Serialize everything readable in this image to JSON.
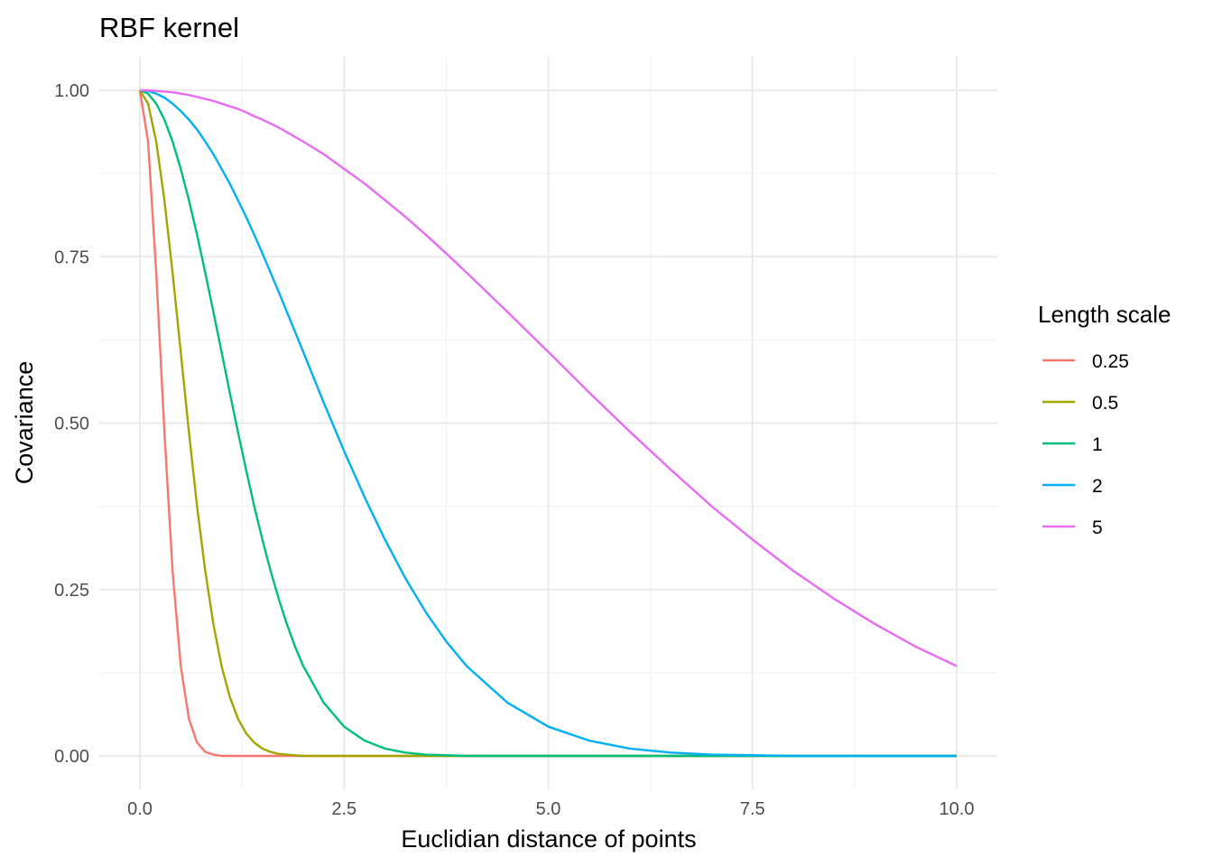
{
  "chart_data": {
    "type": "line",
    "title": "RBF kernel",
    "xlabel": "Euclidian distance of points",
    "ylabel": "Covariance",
    "xlim": [
      0,
      10
    ],
    "ylim": [
      0,
      1
    ],
    "x_ticks": [
      "0.0",
      "2.5",
      "5.0",
      "7.5",
      "10.0"
    ],
    "y_ticks": [
      "0.00",
      "0.25",
      "0.50",
      "0.75",
      "1.00"
    ],
    "x_tick_values": [
      0,
      2.5,
      5,
      7.5,
      10
    ],
    "y_tick_values": [
      0,
      0.25,
      0.5,
      0.75,
      1
    ],
    "grid": true,
    "legend": {
      "title": "Length scale",
      "position": "right"
    },
    "x": [
      0,
      0.1,
      0.2,
      0.3,
      0.4,
      0.5,
      0.6,
      0.7,
      0.8,
      0.9,
      1,
      1.1,
      1.2,
      1.3,
      1.4,
      1.5,
      1.6,
      1.7,
      1.8,
      1.9,
      2,
      2.25,
      2.5,
      2.75,
      3,
      3.25,
      3.5,
      3.75,
      4,
      4.5,
      5,
      5.5,
      6,
      6.5,
      7,
      7.5,
      8,
      8.5,
      9,
      9.5,
      10
    ],
    "series": [
      {
        "name": "0.25",
        "color": "#F8766D",
        "values": [
          1,
          0.923,
          0.726,
          0.487,
          0.278,
          0.135,
          0.056,
          0.02,
          0.006,
          0.002,
          0,
          0,
          0,
          0,
          0,
          0,
          0,
          0,
          0,
          0,
          0,
          0,
          0,
          0,
          0,
          0,
          0,
          0,
          0,
          0,
          0,
          0,
          0,
          0,
          0,
          0,
          0,
          0,
          0,
          0,
          0
        ]
      },
      {
        "name": "0.5",
        "color": "#A3A500",
        "values": [
          1,
          0.98,
          0.923,
          0.835,
          0.726,
          0.607,
          0.487,
          0.375,
          0.278,
          0.198,
          0.135,
          0.089,
          0.056,
          0.034,
          0.02,
          0.011,
          0.006,
          0.003,
          0.002,
          0.001,
          0,
          0,
          0,
          0,
          0,
          0,
          0,
          0,
          0,
          0,
          0,
          0,
          0,
          0,
          0,
          0,
          0,
          0,
          0,
          0,
          0
        ]
      },
      {
        "name": "1",
        "color": "#00BF7D",
        "values": [
          1,
          0.995,
          0.98,
          0.956,
          0.923,
          0.882,
          0.835,
          0.783,
          0.726,
          0.667,
          0.607,
          0.546,
          0.487,
          0.43,
          0.375,
          0.325,
          0.278,
          0.236,
          0.198,
          0.164,
          0.135,
          0.08,
          0.044,
          0.023,
          0.011,
          0.005,
          0.002,
          0.001,
          0,
          0,
          0,
          0,
          0,
          0,
          0,
          0,
          0,
          0,
          0,
          0,
          0
        ]
      },
      {
        "name": "2",
        "color": "#00B0F6",
        "values": [
          1,
          0.999,
          0.995,
          0.989,
          0.98,
          0.969,
          0.956,
          0.941,
          0.923,
          0.904,
          0.882,
          0.86,
          0.835,
          0.81,
          0.783,
          0.755,
          0.726,
          0.697,
          0.667,
          0.637,
          0.607,
          0.531,
          0.458,
          0.389,
          0.325,
          0.267,
          0.216,
          0.172,
          0.135,
          0.08,
          0.044,
          0.023,
          0.011,
          0.005,
          0.002,
          0.001,
          0,
          0,
          0,
          0,
          0
        ]
      },
      {
        "name": "5",
        "color": "#E76BF3",
        "values": [
          1,
          1,
          0.999,
          0.998,
          0.997,
          0.995,
          0.993,
          0.99,
          0.987,
          0.984,
          0.98,
          0.976,
          0.972,
          0.967,
          0.961,
          0.956,
          0.95,
          0.944,
          0.937,
          0.93,
          0.923,
          0.904,
          0.882,
          0.86,
          0.835,
          0.81,
          0.783,
          0.755,
          0.726,
          0.667,
          0.607,
          0.546,
          0.487,
          0.43,
          0.375,
          0.325,
          0.278,
          0.236,
          0.198,
          0.164,
          0.135
        ]
      }
    ]
  }
}
